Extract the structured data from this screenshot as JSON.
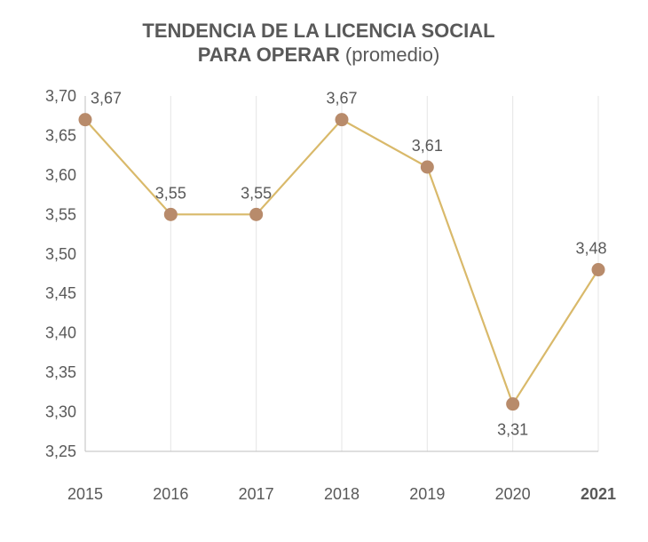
{
  "chart_data": {
    "type": "line",
    "title_line1": "TENDENCIA DE LA LICENCIA SOCIAL",
    "title_line2_bold": "PARA OPERAR",
    "title_line2_rest": " (promedio)",
    "categories": [
      "2015",
      "2016",
      "2017",
      "2018",
      "2019",
      "2020",
      "2021"
    ],
    "highlight_category": "2021",
    "values": [
      3.67,
      3.55,
      3.55,
      3.67,
      3.61,
      3.31,
      3.48
    ],
    "data_labels": [
      "3,67",
      "3,55",
      "3,55",
      "3,67",
      "3,61",
      "3,31",
      "3,48"
    ],
    "ylim": [
      3.25,
      3.7
    ],
    "yticks": [
      3.25,
      3.3,
      3.35,
      3.4,
      3.45,
      3.5,
      3.55,
      3.6,
      3.65,
      3.7
    ],
    "ytick_labels": [
      "3,25",
      "3,30",
      "3,35",
      "3,40",
      "3,45",
      "3,50",
      "3,55",
      "3,60",
      "3,65",
      "3,70"
    ],
    "vertical_grid": true,
    "horizontal_grid": false,
    "legend": "none",
    "colors": {
      "line": "#D9B96A",
      "marker": "#B88B6B",
      "grid": "#E5E5E5",
      "axis": "#BFBFBF",
      "text": "#595959"
    }
  }
}
